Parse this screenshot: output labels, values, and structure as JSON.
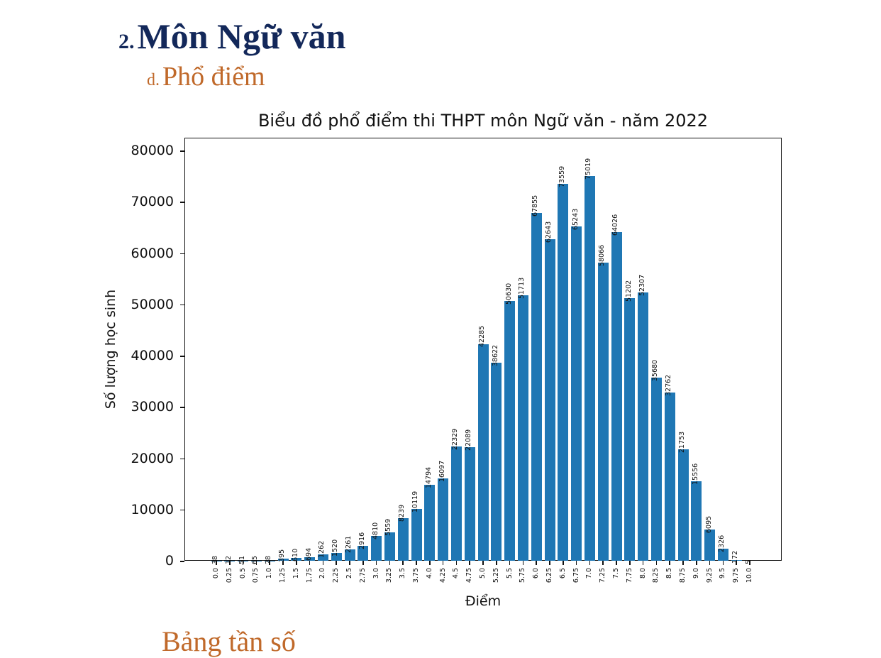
{
  "header": {
    "section_number": "2.",
    "section_title": "Môn Ngữ văn",
    "subsection_number": "d.",
    "subsection_title": "Phổ điểm",
    "next_subsection_partial": "Bảng tần số"
  },
  "colors": {
    "heading": "#13285a",
    "subheading": "#c0692a",
    "bar": "#1f77b4"
  },
  "chart_data": {
    "type": "bar",
    "title": "Biểu đồ phổ điểm thi THPT môn Ngữ văn - năm 2022",
    "xlabel": "Điểm",
    "ylabel": "Số lượng học sinh",
    "ylim": [
      0,
      82000
    ],
    "yticks": [
      0,
      10000,
      20000,
      30000,
      40000,
      50000,
      60000,
      70000,
      80000
    ],
    "grid": false,
    "legend": null,
    "categories": [
      "0.0",
      "0.25",
      "0.5",
      "0.75",
      "1.0",
      "1.25",
      "1.5",
      "1.75",
      "2.0",
      "2.25",
      "2.5",
      "2.75",
      "3.0",
      "3.25",
      "3.5",
      "3.75",
      "4.0",
      "4.25",
      "4.5",
      "4.75",
      "5.0",
      "5.25",
      "5.5",
      "5.75",
      "6.0",
      "6.25",
      "6.5",
      "6.75",
      "7.0",
      "7.25",
      "7.5",
      "7.75",
      "8.0",
      "8.25",
      "8.5",
      "8.75",
      "9.0",
      "9.25",
      "9.5",
      "9.75",
      "10.0"
    ],
    "values": [
      38,
      12,
      51,
      65,
      28,
      395,
      610,
      694,
      1262,
      1520,
      2261,
      2916,
      4810,
      5559,
      8239,
      10119,
      14794,
      16097,
      22329,
      22089,
      42285,
      38622,
      50630,
      51713,
      67855,
      62643,
      73559,
      65243,
      75019,
      58066,
      64026,
      51202,
      52307,
      35680,
      32762,
      21753,
      15556,
      6095,
      2326,
      172,
      5
    ]
  }
}
